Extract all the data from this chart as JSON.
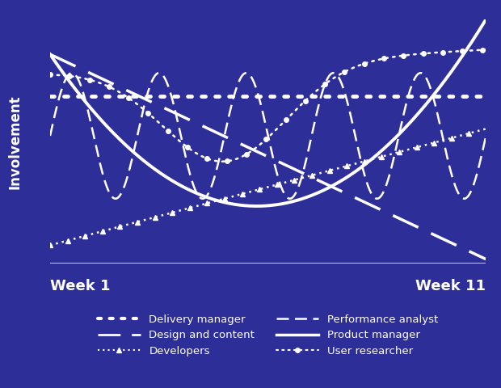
{
  "background_color": "#2E2E99",
  "line_color": "white",
  "ylabel": "Involvement",
  "xlabel_left": "Week 1",
  "xlabel_right": "Week 11",
  "figsize": [
    6.2,
    4.8
  ],
  "dpi": 100
}
